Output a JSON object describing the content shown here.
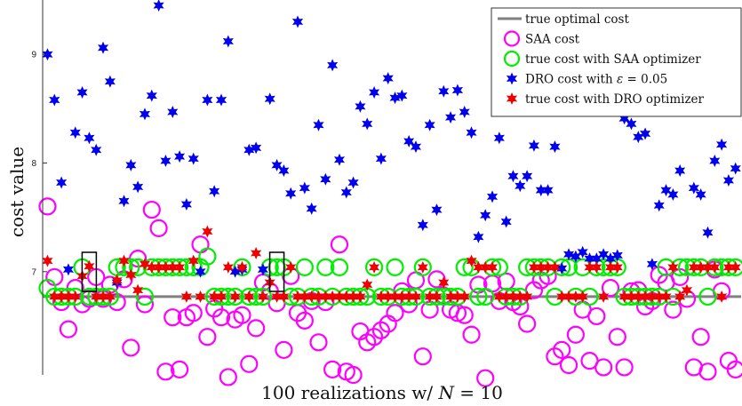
{
  "chart_data": {
    "type": "scatter",
    "xlabel": "100 realizations w/ N = 10",
    "xlabel_parts": {
      "prefix": "100 realizations w/ ",
      "var": "N",
      "suffix": " = 10"
    },
    "ylabel": "cost value",
    "ylim": [
      6.05,
      9.5
    ],
    "xlim": [
      0.3,
      100.8
    ],
    "yticks": [
      7,
      8,
      9
    ],
    "legend_position": "top-right",
    "true_optimal_cost": 6.77,
    "legend": [
      {
        "key": "true",
        "label": "true optimal cost"
      },
      {
        "key": "saa",
        "label": "SAA cost"
      },
      {
        "key": "saa_true",
        "label": "true cost with SAA optimizer"
      },
      {
        "key": "dro",
        "label_parts": {
          "prefix": "DRO cost with ",
          "var": "ε",
          "suffix": " = 0.05"
        }
      },
      {
        "key": "dro_true",
        "label": "true cost with DRO optimizer"
      }
    ],
    "highlighted_realizations": [
      7,
      34
    ],
    "series": [
      {
        "key": "true",
        "name": "true optimal cost",
        "style": "line",
        "color": "#808080"
      },
      {
        "key": "saa",
        "name": "SAA cost",
        "style": "circle",
        "color": "#ff00ff",
        "values": [
          7.6,
          6.95,
          6.72,
          6.47,
          6.85,
          6.7,
          6.75,
          6.95,
          6.75,
          6.88,
          6.72,
          6.93,
          6.3,
          7.12,
          6.7,
          7.57,
          7.4,
          6.08,
          6.58,
          6.1,
          6.58,
          6.62,
          7.25,
          6.4,
          6.66,
          6.58,
          6.03,
          6.56,
          6.6,
          6.15,
          6.48,
          6.9,
          6.82,
          6.71,
          6.28,
          6.96,
          6.62,
          6.55,
          6.73,
          6.35,
          6.72,
          6.1,
          7.25,
          6.08,
          6.05,
          6.45,
          6.35,
          6.4,
          6.46,
          6.52,
          6.62,
          6.82,
          6.7,
          6.92,
          6.22,
          6.65,
          6.93,
          6.78,
          6.65,
          6.62,
          6.6,
          6.42,
          6.88,
          6.02,
          6.89,
          6.73,
          6.91,
          6.72,
          6.68,
          6.52,
          6.83,
          6.92,
          6.96,
          6.22,
          6.28,
          6.14,
          6.42,
          6.65,
          6.18,
          6.59,
          6.12,
          6.85,
          6.4,
          6.12,
          6.82,
          6.83,
          6.68,
          6.73,
          6.97,
          6.9,
          6.65,
          6.95,
          6.75,
          6.12,
          6.4,
          6.08,
          7.02,
          6.82,
          6.18,
          6.1
        ]
      },
      {
        "key": "saa_true",
        "name": "true cost with SAA optimizer",
        "style": "circle",
        "color": "#00ee00",
        "values": [
          6.85,
          6.77,
          6.77,
          6.77,
          6.77,
          7.04,
          6.77,
          6.77,
          6.77,
          6.77,
          7.04,
          7.04,
          7.04,
          7.04,
          6.77,
          7.04,
          7.04,
          7.04,
          7.04,
          7.04,
          7.04,
          7.04,
          7.04,
          7.14,
          6.77,
          6.77,
          6.77,
          6.77,
          7.04,
          6.77,
          6.77,
          6.77,
          7.04,
          7.04,
          7.04,
          6.77,
          6.77,
          7.04,
          6.77,
          6.77,
          7.04,
          6.77,
          7.04,
          6.77,
          6.77,
          6.77,
          6.77,
          7.04,
          6.77,
          6.77,
          7.04,
          6.77,
          6.77,
          6.77,
          7.04,
          6.77,
          6.77,
          6.77,
          6.77,
          6.77,
          7.04,
          7.04,
          6.77,
          6.77,
          7.04,
          7.04,
          6.77,
          6.77,
          6.77,
          7.04,
          7.04,
          7.04,
          7.04,
          6.77,
          7.04,
          7.04,
          6.77,
          7.04,
          6.77,
          7.04,
          7.04,
          7.04,
          7.04,
          6.77,
          6.77,
          6.77,
          6.77,
          6.77,
          6.77,
          7.04,
          6.77,
          7.04,
          7.04,
          7.04,
          7.04,
          6.77,
          7.04,
          7.04,
          7.04,
          7.04
        ]
      },
      {
        "key": "dro",
        "name": "DRO cost with ε = 0.05",
        "style": "star",
        "color": "#0000ee",
        "values": [
          9.0,
          8.58,
          7.82,
          7.02,
          8.28,
          8.65,
          8.23,
          8.12,
          9.06,
          8.75,
          6.9,
          7.65,
          7.98,
          7.78,
          8.45,
          8.62,
          9.45,
          8.02,
          8.47,
          8.06,
          7.62,
          8.04,
          7.0,
          8.58,
          7.74,
          8.58,
          9.12,
          7.0,
          7.02,
          8.12,
          8.14,
          7.02,
          8.59,
          7.98,
          7.93,
          7.72,
          9.3,
          7.77,
          7.58,
          8.35,
          7.85,
          8.9,
          8.03,
          7.73,
          7.82,
          8.52,
          8.36,
          8.65,
          8.04,
          8.78,
          8.6,
          8.62,
          8.2,
          8.15,
          7.43,
          8.35,
          7.57,
          8.66,
          8.42,
          8.67,
          8.47,
          8.28,
          7.32,
          7.52,
          7.69,
          8.23,
          7.46,
          7.88,
          7.79,
          7.88,
          8.16,
          7.75,
          7.75,
          8.15,
          7.03,
          7.16,
          7.14,
          7.18,
          7.12,
          7.12,
          7.16,
          7.12,
          7.15,
          8.41,
          8.36,
          8.24,
          8.27,
          7.07,
          7.61,
          7.75,
          7.71,
          7.93,
          8.51,
          7.77,
          7.71,
          7.36,
          8.02,
          8.17,
          7.84,
          7.95
        ]
      },
      {
        "key": "dro_true",
        "name": "true cost with DRO optimizer",
        "style": "star",
        "color": "#ee0000",
        "values": [
          7.1,
          6.77,
          6.77,
          6.77,
          6.77,
          6.96,
          7.05,
          6.77,
          6.77,
          6.77,
          6.92,
          7.1,
          6.97,
          6.83,
          7.07,
          7.04,
          7.04,
          7.04,
          7.04,
          7.04,
          6.77,
          7.1,
          6.77,
          7.37,
          6.77,
          6.77,
          7.04,
          6.77,
          7.04,
          6.77,
          7.17,
          6.77,
          6.9,
          6.77,
          6.77,
          7.04,
          6.77,
          6.77,
          6.77,
          6.77,
          6.77,
          6.77,
          6.77,
          6.77,
          6.77,
          6.77,
          6.88,
          7.04,
          6.77,
          6.77,
          6.77,
          6.77,
          6.77,
          6.77,
          7.04,
          6.77,
          6.77,
          6.9,
          6.77,
          6.77,
          6.77,
          7.1,
          7.04,
          7.04,
          7.04,
          6.77,
          6.77,
          6.77,
          6.77,
          6.77,
          7.04,
          7.04,
          7.04,
          7.04,
          6.77,
          6.77,
          6.77,
          6.77,
          7.04,
          7.04,
          6.77,
          7.04,
          7.04,
          6.77,
          6.77,
          6.77,
          6.77,
          6.77,
          6.77,
          6.77,
          7.04,
          6.77,
          6.83,
          7.04,
          7.04,
          7.04,
          7.04,
          6.77,
          7.04,
          7.04
        ]
      }
    ]
  }
}
